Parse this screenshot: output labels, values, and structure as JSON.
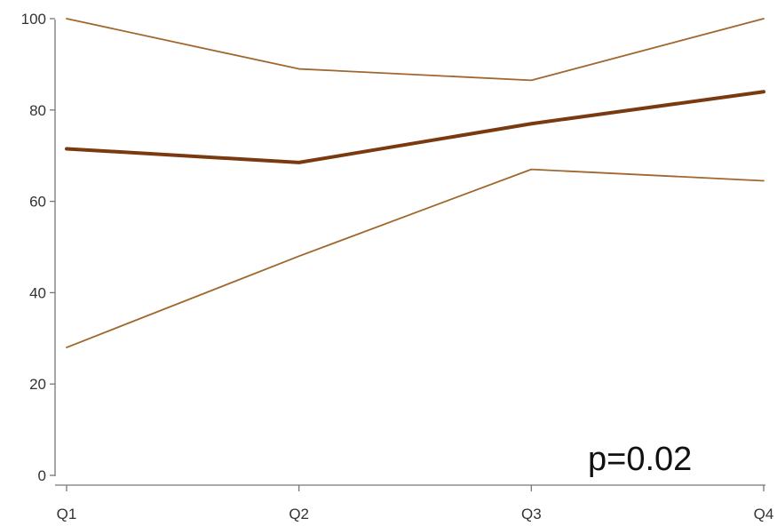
{
  "chart_data": {
    "type": "line",
    "categories": [
      "Q1",
      "Q2",
      "Q3",
      "Q4"
    ],
    "series": [
      {
        "values": [
          100,
          89,
          86.5,
          100
        ],
        "color": "#a0672f",
        "weight": "thin"
      },
      {
        "values": [
          71.5,
          68.5,
          77,
          84
        ],
        "color": "#7a3a10",
        "weight": "thick"
      },
      {
        "values": [
          28,
          48,
          67,
          64.5
        ],
        "color": "#a0672f",
        "weight": "thin"
      }
    ],
    "yticks": [
      0,
      20,
      40,
      60,
      80,
      100
    ],
    "ylim": [
      0,
      100
    ],
    "grid": false,
    "legend": "none",
    "annotation": "p=0.02",
    "title": "",
    "xlabel": "",
    "ylabel": ""
  }
}
